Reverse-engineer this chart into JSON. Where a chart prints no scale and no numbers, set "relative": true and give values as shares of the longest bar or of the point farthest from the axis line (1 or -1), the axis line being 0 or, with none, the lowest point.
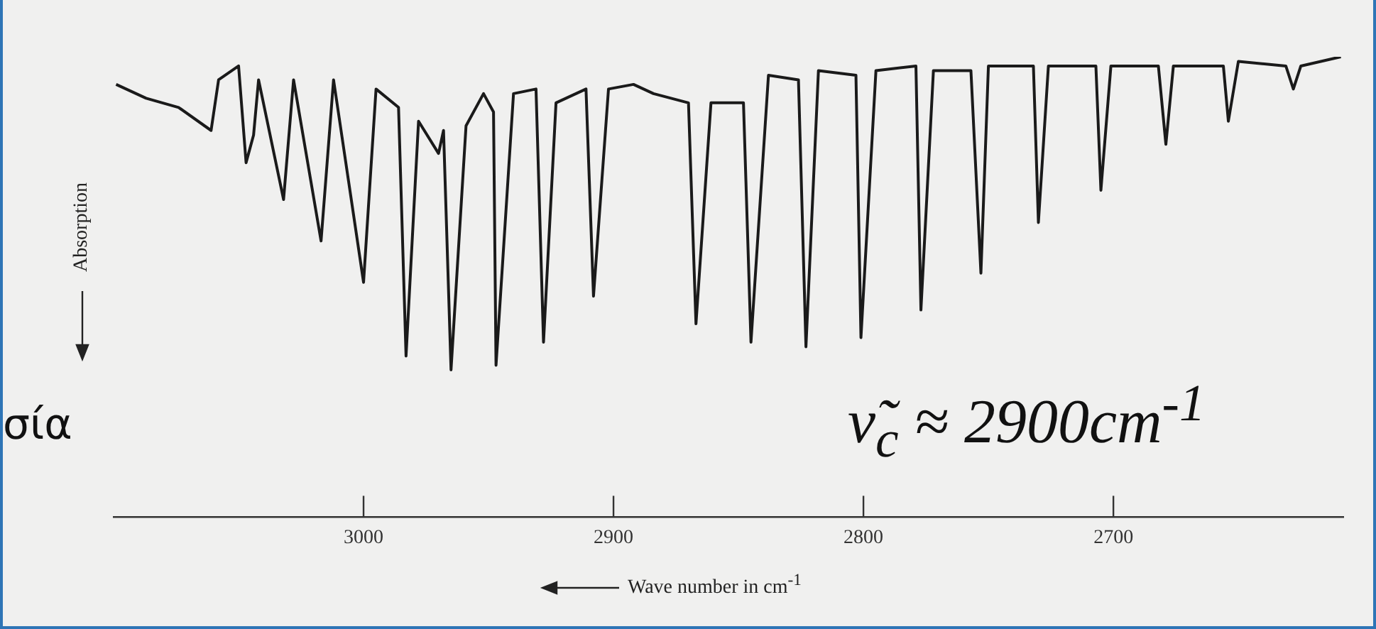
{
  "chart_data": {
    "type": "line",
    "relative": true,
    "xlabel": "Wave number in cm$^{-1}$",
    "ylabel": "Absorption",
    "xlim": [
      3100,
      2608
    ],
    "xticks": [
      3000,
      2900,
      2800,
      2700
    ],
    "grid": false,
    "legend": false,
    "marker": "none",
    "line_style": "solid",
    "annotations": [
      "σία",
      "ν̃$_{c}$ ≈ 2900cm$^{-1}$"
    ],
    "x": [
      3099,
      3087,
      3074,
      3061,
      3058,
      3050,
      3047,
      3044,
      3042,
      3032,
      3028,
      3017,
      3012,
      3000,
      2995,
      2986,
      2983,
      2978,
      2970,
      2968,
      2965,
      2959,
      2952,
      2948,
      2947,
      2940,
      2931,
      2928,
      2923,
      2911,
      2908,
      2902,
      2892,
      2884,
      2870,
      2867,
      2861,
      2848,
      2845,
      2838,
      2826,
      2823,
      2818,
      2803,
      2801,
      2795,
      2779,
      2777,
      2772,
      2757,
      2753,
      2750,
      2732,
      2730,
      2726,
      2707,
      2705,
      2701,
      2682,
      2679,
      2676,
      2656,
      2654,
      2650,
      2631,
      2628,
      2625,
      2609
    ],
    "series": [
      {
        "color": "#1a1a1a",
        "values": [
          0.94,
          0.91,
          0.89,
          0.84,
          0.95,
          0.98,
          0.77,
          0.83,
          0.95,
          0.69,
          0.95,
          0.6,
          0.95,
          0.51,
          0.93,
          0.89,
          0.35,
          0.86,
          0.79,
          0.84,
          0.32,
          0.85,
          0.92,
          0.88,
          0.33,
          0.92,
          0.93,
          0.38,
          0.9,
          0.93,
          0.48,
          0.93,
          0.94,
          0.92,
          0.9,
          0.42,
          0.9,
          0.9,
          0.38,
          0.96,
          0.95,
          0.37,
          0.97,
          0.96,
          0.39,
          0.97,
          0.98,
          0.45,
          0.97,
          0.97,
          0.53,
          0.98,
          0.98,
          0.64,
          0.98,
          0.98,
          0.71,
          0.98,
          0.98,
          0.81,
          0.98,
          0.98,
          0.86,
          0.99,
          0.98,
          0.93,
          0.98,
          1
        ]
      }
    ]
  }
}
